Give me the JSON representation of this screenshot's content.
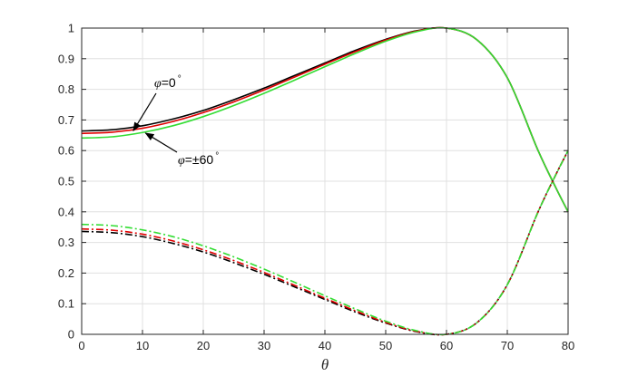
{
  "chart_data": {
    "type": "line",
    "xlabel": "θ",
    "ylabel": "",
    "xlim": [
      0,
      80
    ],
    "ylim": [
      0,
      1
    ],
    "xticks": [
      0,
      10,
      20,
      30,
      40,
      50,
      60,
      70,
      80
    ],
    "yticks": [
      0,
      0.1,
      0.2,
      0.3,
      0.4,
      0.5,
      0.6,
      0.7,
      0.8,
      0.9,
      1
    ],
    "grid": true,
    "x": [
      0,
      5,
      10,
      15,
      20,
      25,
      30,
      35,
      40,
      45,
      50,
      55,
      60,
      65,
      70,
      75,
      78,
      80
    ],
    "series": [
      {
        "color": "#000000",
        "style": "solid",
        "values": [
          0.664,
          0.668,
          0.681,
          0.703,
          0.731,
          0.766,
          0.804,
          0.845,
          0.886,
          0.927,
          0.963,
          0.991,
          1.0,
          0.962,
          0.838,
          0.603,
          0.478,
          0.4
        ]
      },
      {
        "color": "#e00000",
        "style": "solid",
        "values": [
          0.656,
          0.66,
          0.673,
          0.695,
          0.724,
          0.759,
          0.798,
          0.84,
          0.882,
          0.923,
          0.961,
          0.99,
          1.0,
          0.962,
          0.838,
          0.603,
          0.478,
          0.4
        ]
      },
      {
        "color": "#33dd33",
        "style": "solid",
        "values": [
          0.641,
          0.645,
          0.659,
          0.681,
          0.711,
          0.747,
          0.787,
          0.83,
          0.874,
          0.917,
          0.957,
          0.988,
          1.0,
          0.962,
          0.838,
          0.603,
          0.478,
          0.4
        ]
      },
      {
        "color": "#000000",
        "style": "dashdot",
        "values": [
          0.336,
          0.332,
          0.319,
          0.297,
          0.269,
          0.234,
          0.196,
          0.155,
          0.114,
          0.073,
          0.037,
          0.009,
          0.0,
          0.038,
          0.162,
          0.397,
          0.522,
          0.6
        ]
      },
      {
        "color": "#e00000",
        "style": "dashdot",
        "values": [
          0.344,
          0.34,
          0.327,
          0.305,
          0.276,
          0.241,
          0.202,
          0.16,
          0.118,
          0.077,
          0.039,
          0.01,
          0.0,
          0.038,
          0.162,
          0.397,
          0.522,
          0.6
        ]
      },
      {
        "color": "#33dd33",
        "style": "dashdot",
        "values": [
          0.359,
          0.355,
          0.341,
          0.319,
          0.289,
          0.253,
          0.213,
          0.17,
          0.126,
          0.083,
          0.043,
          0.012,
          0.0,
          0.038,
          0.162,
          0.397,
          0.522,
          0.6
        ]
      }
    ],
    "annotations": [
      {
        "symbol": "φ",
        "text": "=0",
        "superscript": "°",
        "points_to": [
          8.5,
          0.665
        ]
      },
      {
        "symbol": "φ",
        "text": "=±60",
        "superscript": "°",
        "points_to": [
          10.5,
          0.657
        ]
      }
    ],
    "colors": {
      "axis": "#262626",
      "grid": "#e0e0e0"
    }
  }
}
